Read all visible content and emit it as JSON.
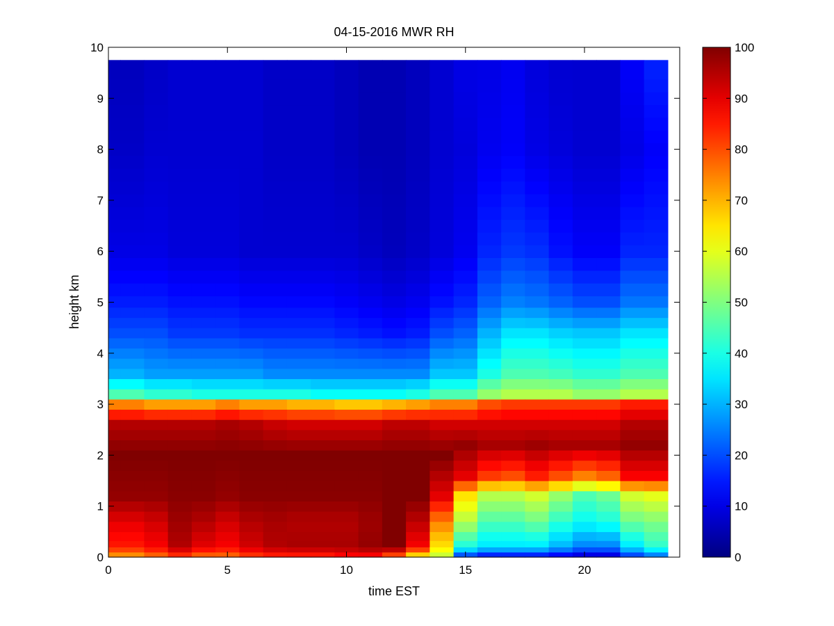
{
  "chart_data": {
    "type": "heatmap",
    "title": "04-15-2016 MWR RH",
    "xlabel": "time EST",
    "ylabel": "height km",
    "xlim": [
      0,
      24
    ],
    "ylim": [
      0,
      10
    ],
    "xticks": [
      0,
      5,
      10,
      15,
      20
    ],
    "yticks": [
      0,
      1,
      2,
      3,
      4,
      5,
      6,
      7,
      8,
      9,
      10
    ],
    "colormap": "jet",
    "colorbar": {
      "range": [
        0,
        100
      ],
      "ticks": [
        0,
        10,
        20,
        30,
        40,
        50,
        60,
        70,
        80,
        90,
        100
      ]
    },
    "time_hours": [
      0,
      1,
      2,
      3,
      4,
      5,
      6,
      7,
      8,
      9,
      10,
      11,
      12,
      13,
      14,
      15,
      16,
      17,
      18,
      19,
      20,
      21,
      22,
      23
    ],
    "height_km": [
      0.05,
      0.15,
      0.25,
      0.4,
      0.6,
      0.8,
      1.0,
      1.2,
      1.4,
      1.6,
      1.8,
      2.0,
      2.2,
      2.4,
      2.6,
      2.8,
      3.0,
      3.2,
      3.4,
      3.6,
      3.8,
      4.0,
      4.2,
      4.4,
      4.6,
      4.8,
      5.0,
      5.25,
      5.5,
      5.75,
      6.0,
      6.25,
      6.5,
      6.75,
      7.0,
      7.25,
      7.5,
      7.75,
      8.0,
      8.25,
      8.5,
      8.75,
      9.0,
      9.25,
      9.5
    ],
    "rh_profiles": [
      {
        "hour": 0,
        "h": [
          0,
          0.2,
          0.7,
          1.2,
          2.0,
          2.6,
          3.0,
          3.2,
          3.6,
          4.4,
          5.0,
          6.0,
          8.0,
          9.75
        ],
        "rh": [
          70,
          85,
          90,
          98,
          100,
          95,
          75,
          45,
          30,
          20,
          15,
          10,
          7,
          6
        ]
      },
      {
        "hour": 1,
        "h": [
          0,
          0.2,
          0.7,
          1.2,
          2.0,
          2.6,
          3.0,
          3.2,
          3.6,
          4.4,
          5.0,
          6.0,
          8.0,
          9.75
        ],
        "rh": [
          70,
          85,
          90,
          98,
          100,
          95,
          75,
          45,
          30,
          20,
          15,
          10,
          7,
          6
        ]
      },
      {
        "hour": 2,
        "h": [
          0,
          0.2,
          0.7,
          1.2,
          2.0,
          2.6,
          3.0,
          3.2,
          3.6,
          4.4,
          5.0,
          6.0,
          8.0,
          9.75
        ],
        "rh": [
          75,
          88,
          92,
          98,
          100,
          95,
          72,
          42,
          28,
          20,
          15,
          10,
          8,
          7
        ]
      },
      {
        "hour": 3,
        "h": [
          0,
          0.2,
          0.7,
          1.2,
          2.0,
          2.6,
          3.0,
          3.2,
          3.6,
          4.4,
          5.0,
          6.0,
          8.0,
          9.75
        ],
        "rh": [
          80,
          95,
          97,
          99,
          100,
          95,
          72,
          42,
          28,
          18,
          14,
          9,
          8,
          8
        ]
      },
      {
        "hour": 4,
        "h": [
          0,
          0.2,
          0.7,
          1.2,
          2.0,
          2.6,
          3.0,
          3.2,
          3.6,
          4.4,
          5.0,
          6.0,
          8.0,
          9.75
        ],
        "rh": [
          75,
          90,
          95,
          99,
          100,
          95,
          72,
          40,
          28,
          18,
          14,
          9,
          8,
          8
        ]
      },
      {
        "hour": 5,
        "h": [
          0,
          0.2,
          0.7,
          1.2,
          2.0,
          2.6,
          3.0,
          3.2,
          3.6,
          4.4,
          5.0,
          6.0,
          8.0,
          9.75
        ],
        "rh": [
          75,
          88,
          92,
          98,
          100,
          96,
          75,
          40,
          28,
          18,
          14,
          9,
          8,
          8
        ]
      },
      {
        "hour": 6,
        "h": [
          0,
          0.2,
          0.7,
          1.2,
          2.0,
          2.6,
          3.0,
          3.2,
          3.6,
          4.4,
          5.0,
          6.0,
          8.0,
          9.75
        ],
        "rh": [
          80,
          92,
          95,
          99,
          100,
          95,
          72,
          40,
          28,
          17,
          13,
          8,
          8,
          8
        ]
      },
      {
        "hour": 7,
        "h": [
          0,
          0.2,
          0.7,
          1.2,
          2.0,
          2.6,
          3.0,
          3.2,
          3.6,
          4.4,
          5.0,
          6.0,
          8.0,
          9.75
        ],
        "rh": [
          82,
          95,
          96,
          99,
          100,
          93,
          72,
          40,
          26,
          17,
          13,
          8,
          7,
          7
        ]
      },
      {
        "hour": 8,
        "h": [
          0,
          0.2,
          0.7,
          1.2,
          2.0,
          2.6,
          3.0,
          3.2,
          3.6,
          4.4,
          5.0,
          6.0,
          8.0,
          9.75
        ],
        "rh": [
          82,
          96,
          95,
          99,
          100,
          92,
          70,
          40,
          26,
          17,
          13,
          8,
          7,
          7
        ]
      },
      {
        "hour": 9,
        "h": [
          0,
          0.2,
          0.7,
          1.2,
          2.0,
          2.6,
          3.0,
          3.2,
          3.6,
          4.4,
          5.0,
          6.0,
          8.0,
          9.75
        ],
        "rh": [
          82,
          96,
          95,
          99,
          100,
          92,
          70,
          38,
          26,
          17,
          13,
          8,
          7,
          7
        ]
      },
      {
        "hour": 10,
        "h": [
          0,
          0.2,
          0.7,
          1.2,
          2.0,
          2.6,
          3.0,
          3.2,
          3.6,
          4.4,
          5.0,
          6.0,
          8.0,
          9.75
        ],
        "rh": [
          85,
          96,
          95,
          99,
          100,
          92,
          68,
          38,
          26,
          16,
          12,
          8,
          6,
          6
        ]
      },
      {
        "hour": 11,
        "h": [
          0,
          0.2,
          0.7,
          1.2,
          2.0,
          2.6,
          3.0,
          3.2,
          3.6,
          4.4,
          5.0,
          6.0,
          8.0,
          9.75
        ],
        "rh": [
          85,
          98,
          97,
          99,
          100,
          92,
          68,
          38,
          26,
          15,
          11,
          7,
          5,
          5
        ]
      },
      {
        "hour": 12,
        "h": [
          0,
          0.2,
          0.7,
          1.2,
          2.0,
          2.6,
          3.0,
          3.2,
          3.6,
          4.4,
          5.0,
          6.0,
          8.0,
          9.75
        ],
        "rh": [
          75,
          100,
          100,
          100,
          100,
          94,
          70,
          38,
          26,
          14,
          10,
          6,
          5,
          5
        ]
      },
      {
        "hour": 13,
        "h": [
          0,
          0.2,
          0.7,
          1.2,
          2.0,
          2.6,
          3.0,
          3.2,
          3.6,
          4.4,
          5.0,
          6.0,
          8.0,
          9.75
        ],
        "rh": [
          60,
          88,
          94,
          100,
          100,
          94,
          72,
          40,
          26,
          15,
          11,
          7,
          6,
          6
        ]
      },
      {
        "hour": 14,
        "h": [
          0,
          0.2,
          0.7,
          1.2,
          2.0,
          2.6,
          3.0,
          3.2,
          3.6,
          4.4,
          5.0,
          6.0,
          8.0,
          9.75
        ],
        "rh": [
          55,
          65,
          75,
          90,
          100,
          92,
          75,
          45,
          32,
          20,
          14,
          9,
          8,
          8
        ]
      },
      {
        "hour": 15,
        "h": [
          0,
          0.2,
          0.7,
          1.2,
          1.6,
          2.2,
          2.6,
          3.0,
          3.2,
          3.6,
          4.4,
          5.0,
          6.0,
          8.0,
          9.75
        ],
        "rh": [
          15,
          40,
          55,
          65,
          90,
          98,
          92,
          75,
          45,
          32,
          22,
          16,
          11,
          9,
          10
        ]
      },
      {
        "hour": 16,
        "h": [
          0,
          0.2,
          0.7,
          1.2,
          1.6,
          2.2,
          2.6,
          3.0,
          3.2,
          3.6,
          4.4,
          5.0,
          6.0,
          8.0,
          9.75
        ],
        "rh": [
          10,
          35,
          45,
          55,
          82,
          96,
          92,
          80,
          52,
          40,
          30,
          22,
          16,
          11,
          10
        ]
      },
      {
        "hour": 17,
        "h": [
          0,
          0.2,
          0.7,
          1.2,
          1.6,
          2.2,
          2.6,
          3.0,
          3.2,
          3.6,
          4.4,
          5.0,
          6.0,
          8.0,
          9.75
        ],
        "rh": [
          10,
          35,
          45,
          55,
          80,
          96,
          92,
          82,
          55,
          45,
          35,
          25,
          18,
          12,
          11
        ]
      },
      {
        "hour": 18,
        "h": [
          0,
          0.2,
          0.7,
          1.2,
          1.6,
          2.2,
          2.6,
          3.0,
          3.2,
          3.6,
          4.4,
          5.0,
          6.0,
          8.0,
          9.75
        ],
        "rh": [
          10,
          35,
          48,
          58,
          85,
          97,
          92,
          82,
          55,
          45,
          35,
          24,
          17,
          10,
          9
        ]
      },
      {
        "hour": 19,
        "h": [
          0,
          0.2,
          0.7,
          1.2,
          1.6,
          2.2,
          2.6,
          3.0,
          3.2,
          3.6,
          4.4,
          5.0,
          6.0,
          8.0,
          9.75
        ],
        "rh": [
          8,
          30,
          42,
          52,
          80,
          96,
          92,
          82,
          55,
          44,
          33,
          22,
          14,
          9,
          8
        ]
      },
      {
        "hour": 20,
        "h": [
          0,
          0.2,
          0.7,
          1.2,
          1.6,
          2.2,
          2.6,
          3.0,
          3.2,
          3.6,
          4.4,
          5.0,
          6.0,
          8.0,
          9.75
        ],
        "rh": [
          5,
          25,
          38,
          45,
          75,
          96,
          92,
          82,
          52,
          42,
          32,
          20,
          12,
          8,
          8
        ]
      },
      {
        "hour": 21,
        "h": [
          0,
          0.2,
          0.7,
          1.2,
          1.6,
          2.2,
          2.6,
          3.0,
          3.2,
          3.6,
          4.4,
          5.0,
          6.0,
          8.0,
          9.75
        ],
        "rh": [
          5,
          25,
          40,
          48,
          78,
          96,
          92,
          82,
          52,
          42,
          32,
          20,
          12,
          8,
          8
        ]
      },
      {
        "hour": 22,
        "h": [
          0,
          0.2,
          0.7,
          1.2,
          1.6,
          2.2,
          2.6,
          3.0,
          3.2,
          3.6,
          4.4,
          5.0,
          6.0,
          8.0,
          9.75
        ],
        "rh": [
          15,
          35,
          48,
          58,
          88,
          98,
          95,
          85,
          55,
          45,
          35,
          24,
          16,
          10,
          12
        ]
      },
      {
        "hour": 23,
        "h": [
          0,
          0.2,
          0.7,
          1.2,
          1.6,
          2.2,
          2.6,
          3.0,
          3.2,
          3.6,
          4.4,
          5.0,
          6.0,
          8.0,
          9.75
        ],
        "rh": [
          20,
          42,
          50,
          60,
          88,
          98,
          95,
          85,
          55,
          45,
          35,
          24,
          16,
          12,
          16
        ]
      }
    ]
  }
}
